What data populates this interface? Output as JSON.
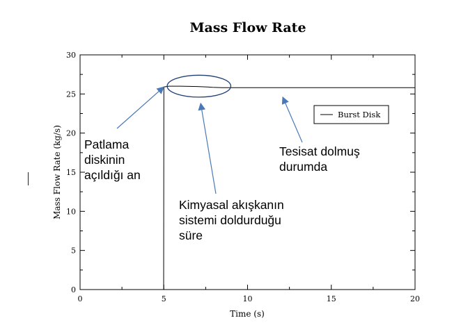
{
  "chart_data": {
    "type": "line",
    "title": "Mass Flow Rate",
    "xlabel": "Time (s)",
    "ylabel": "Mass Flow Rate (kg/s)",
    "xlim": [
      0,
      20
    ],
    "ylim": [
      0,
      30
    ],
    "x_ticks": [
      "0",
      "5",
      "10",
      "15",
      "20"
    ],
    "y_ticks": [
      "0",
      "5",
      "10",
      "15",
      "20",
      "25",
      "30"
    ],
    "grid": false,
    "legend_position": "right",
    "series": [
      {
        "name": "Burst Disk",
        "color": "#000000",
        "x": [
          0,
          4.99,
          5.0,
          5.3,
          6.0,
          7.0,
          7.6,
          7.9,
          8.5,
          10,
          15,
          20
        ],
        "y": [
          0,
          0,
          25.9,
          26.0,
          26.0,
          25.95,
          25.9,
          25.85,
          25.8,
          25.8,
          25.8,
          25.8
        ]
      }
    ],
    "annotations": [
      {
        "id": "burst",
        "text_lines": [
          "Patlama",
          "diskinin",
          "açıldığı an"
        ],
        "points_to": [
          5.0,
          25.9
        ]
      },
      {
        "id": "fill",
        "text_lines": [
          "Kimyasal akışkanın",
          "sistemi doldurduğu",
          "süre"
        ],
        "points_to": [
          7.2,
          23.8
        ]
      },
      {
        "id": "filled",
        "text_lines": [
          "Tesisat dolmuş",
          "durumda"
        ],
        "points_to": [
          12.1,
          24.6
        ]
      }
    ],
    "highlight_ellipse": {
      "center": [
        7.1,
        26.0
      ],
      "x_radius": 1.9,
      "y_radius": 1.4
    }
  }
}
